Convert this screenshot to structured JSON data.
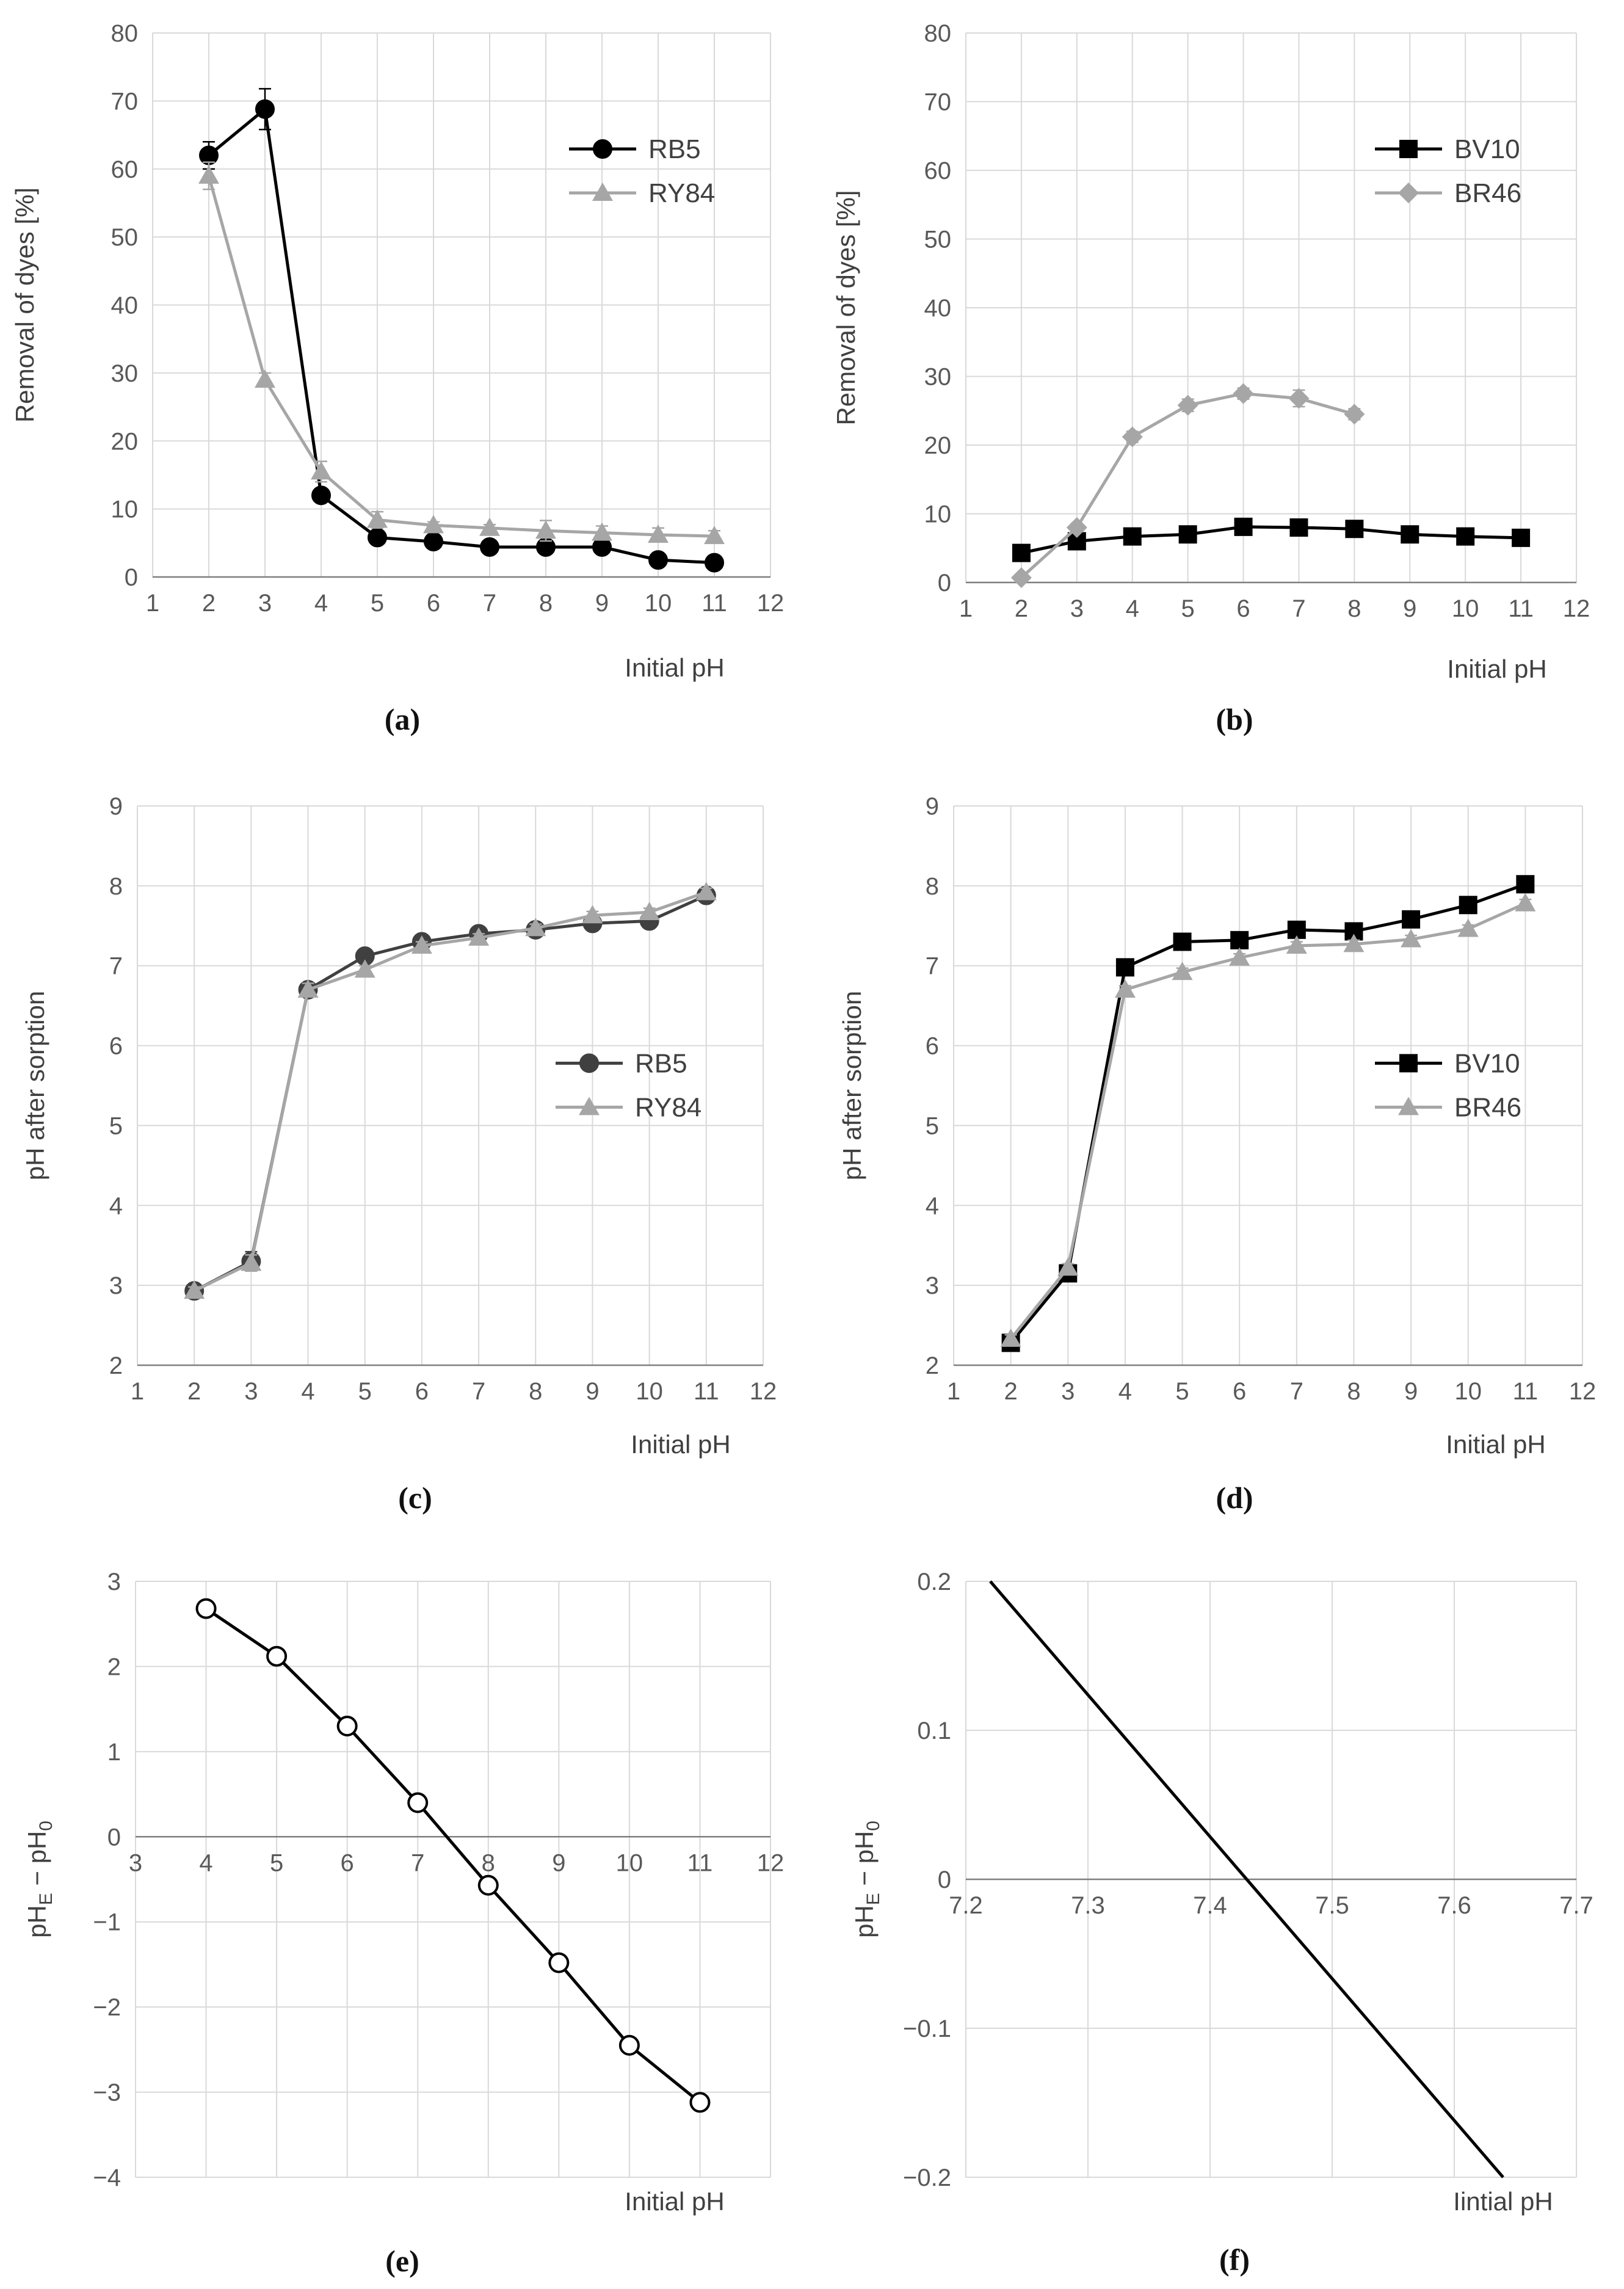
{
  "chart_data": [
    {
      "id": "a",
      "type": "line",
      "panel_label": "(a)",
      "xlabel": "Initial pH",
      "ylabel": "Removal of dyes [%]",
      "xlim": [
        1,
        12
      ],
      "ylim": [
        0,
        80
      ],
      "xticks": [
        1,
        2,
        3,
        4,
        5,
        6,
        7,
        8,
        9,
        10,
        11,
        12
      ],
      "yticks": [
        0,
        10,
        20,
        30,
        40,
        50,
        60,
        70,
        80
      ],
      "x_axis_at": 0,
      "legend": "top-right",
      "series": [
        {
          "name": "RB5",
          "color": "#000000",
          "marker": "circle",
          "x": [
            2,
            3,
            4,
            5,
            6,
            7,
            8,
            9,
            10,
            11
          ],
          "y": [
            62,
            68.8,
            12,
            5.8,
            5.2,
            4.4,
            4.4,
            4.4,
            2.5,
            2.1
          ],
          "err": [
            2,
            3,
            1,
            0.5,
            0.4,
            0.4,
            0.5,
            0.5,
            0.6,
            0.4
          ]
        },
        {
          "name": "RY84",
          "color": "#A6A6A6",
          "marker": "triangle",
          "x": [
            2,
            3,
            4,
            5,
            6,
            7,
            8,
            9,
            10,
            11
          ],
          "y": [
            59,
            29,
            15.5,
            8.4,
            7.6,
            7.2,
            6.8,
            6.5,
            6.2,
            6
          ],
          "err": [
            2,
            1,
            1.5,
            1.2,
            0.5,
            0.5,
            1.5,
            1,
            1,
            0.8
          ]
        }
      ]
    },
    {
      "id": "b",
      "type": "line",
      "panel_label": "(b)",
      "xlabel": "Initial pH",
      "ylabel": "Removal of dyes [%]",
      "xlim": [
        1,
        12
      ],
      "ylim": [
        0,
        80
      ],
      "xticks": [
        1,
        2,
        3,
        4,
        5,
        6,
        7,
        8,
        9,
        10,
        11,
        12
      ],
      "yticks": [
        0,
        10,
        20,
        30,
        40,
        50,
        60,
        70,
        80
      ],
      "x_axis_at": 0,
      "legend": "top-right",
      "series": [
        {
          "name": "BV10",
          "color": "#000000",
          "marker": "square",
          "x": [
            2,
            3,
            4,
            5,
            6,
            7,
            8,
            9,
            10,
            11
          ],
          "y": [
            4.3,
            6,
            6.7,
            7,
            8.1,
            8,
            7.8,
            7,
            6.7,
            6.5
          ],
          "err": [
            0.3,
            0.4,
            0.4,
            0.4,
            0.5,
            0.4,
            0.4,
            0.4,
            0.4,
            0.4
          ]
        },
        {
          "name": "BR46",
          "color": "#A6A6A6",
          "marker": "diamond",
          "x": [
            2,
            3,
            4,
            5,
            6,
            7,
            8
          ],
          "y": [
            0.7,
            8,
            21.2,
            25.8,
            27.5,
            26.8,
            24.5
          ],
          "err": [
            0.3,
            0.6,
            0.8,
            0.9,
            0.8,
            1.2,
            0.8
          ]
        }
      ]
    },
    {
      "id": "c",
      "type": "line",
      "panel_label": "(c)",
      "xlabel": "Initial pH",
      "ylabel": "pH after sorption",
      "xlim": [
        1,
        12
      ],
      "ylim": [
        2,
        9
      ],
      "xticks": [
        1,
        2,
        3,
        4,
        5,
        6,
        7,
        8,
        9,
        10,
        11,
        12
      ],
      "yticks": [
        2,
        3,
        4,
        5,
        6,
        7,
        8,
        9
      ],
      "x_axis_at": 2,
      "legend": "middle-right",
      "series": [
        {
          "name": "RB5",
          "color": "#404040",
          "marker": "circle",
          "x": [
            2,
            3,
            4,
            5,
            6,
            7,
            8,
            9,
            10,
            11
          ],
          "y": [
            2.93,
            3.3,
            6.7,
            7.12,
            7.3,
            7.4,
            7.45,
            7.53,
            7.56,
            7.88
          ],
          "err": [
            0.05,
            0.12,
            0.08,
            0.05,
            0.05,
            0.05,
            0.05,
            0.05,
            0.05,
            0.05
          ]
        },
        {
          "name": "RY84",
          "color": "#A6A6A6",
          "marker": "triangle",
          "x": [
            2,
            3,
            4,
            5,
            6,
            7,
            8,
            9,
            10,
            11
          ],
          "y": [
            2.93,
            3.28,
            6.7,
            6.95,
            7.25,
            7.35,
            7.47,
            7.63,
            7.67,
            7.92
          ],
          "err": [
            0.05,
            0.1,
            0.08,
            0.05,
            0.05,
            0.05,
            0.05,
            0.05,
            0.05,
            0.05
          ]
        }
      ]
    },
    {
      "id": "d",
      "type": "line",
      "panel_label": "(d)",
      "xlabel": "Initial pH",
      "ylabel": "pH after sorption",
      "xlim": [
        1,
        12
      ],
      "ylim": [
        2,
        9
      ],
      "xticks": [
        1,
        2,
        3,
        4,
        5,
        6,
        7,
        8,
        9,
        10,
        11,
        12
      ],
      "yticks": [
        2,
        3,
        4,
        5,
        6,
        7,
        8,
        9
      ],
      "x_axis_at": 2,
      "legend": "middle-right",
      "series": [
        {
          "name": "BV10",
          "color": "#000000",
          "marker": "square",
          "x": [
            2,
            3,
            4,
            5,
            6,
            7,
            8,
            9,
            10,
            11
          ],
          "y": [
            2.28,
            3.15,
            6.98,
            7.3,
            7.32,
            7.45,
            7.43,
            7.58,
            7.76,
            8.02
          ],
          "err": [
            0.05,
            0.05,
            0.05,
            0.05,
            0.05,
            0.05,
            0.05,
            0.05,
            0.05,
            0.05
          ]
        },
        {
          "name": "BR46",
          "color": "#A6A6A6",
          "marker": "triangle",
          "x": [
            2,
            3,
            4,
            5,
            6,
            7,
            8,
            9,
            10,
            11
          ],
          "y": [
            2.33,
            3.22,
            6.7,
            6.92,
            7.1,
            7.25,
            7.27,
            7.33,
            7.46,
            7.78
          ],
          "err": [
            0.05,
            0.05,
            0.05,
            0.05,
            0.05,
            0.05,
            0.05,
            0.05,
            0.05,
            0.05
          ]
        }
      ]
    },
    {
      "id": "e",
      "type": "line",
      "panel_label": "(e)",
      "xlabel": "Initial pH",
      "ylabel_main": "pH",
      "ylabel_sub1": "E",
      "ylabel_mid": " − pH",
      "ylabel_sub2": "0",
      "xlim": [
        3,
        12
      ],
      "ylim": [
        -4,
        3
      ],
      "xticks": [
        3,
        4,
        5,
        6,
        7,
        8,
        9,
        10,
        11,
        12
      ],
      "yticks": [
        -4,
        -3,
        -2,
        -1,
        0,
        1,
        2,
        3
      ],
      "ytick_labels": [
        "−4",
        "−3",
        "−2",
        "−1",
        "0",
        "1",
        "2",
        "3"
      ],
      "x_axis_at": 0,
      "legend": "none",
      "series": [
        {
          "name": "pHE − pH0",
          "color": "#000000",
          "marker": "open-circle",
          "x": [
            4,
            5,
            6,
            7,
            8,
            9,
            10,
            11
          ],
          "y": [
            2.68,
            2.12,
            1.3,
            0.4,
            -0.57,
            -1.48,
            -2.45,
            -3.12
          ]
        }
      ]
    },
    {
      "id": "f",
      "type": "line",
      "panel_label": "(f)",
      "xlabel": "Iintial pH",
      "ylabel_main": "pH",
      "ylabel_sub1": "E",
      "ylabel_mid": " − pH",
      "ylabel_sub2": "0",
      "xlim": [
        7.2,
        7.7
      ],
      "ylim": [
        -0.2,
        0.2
      ],
      "xticks": [
        7.2,
        7.3,
        7.4,
        7.5,
        7.6,
        7.7
      ],
      "yticks": [
        -0.2,
        -0.1,
        0,
        0.1,
        0.2
      ],
      "ytick_labels": [
        "−0.2",
        "−0.1",
        "0",
        "0.1",
        "0.2"
      ],
      "x_axis_at": 0,
      "legend": "none",
      "series": [
        {
          "name": "pHE − pH0",
          "color": "#000000",
          "marker": "none",
          "x": [
            7.22,
            7.64
          ],
          "y": [
            0.2,
            -0.2
          ]
        }
      ]
    }
  ]
}
